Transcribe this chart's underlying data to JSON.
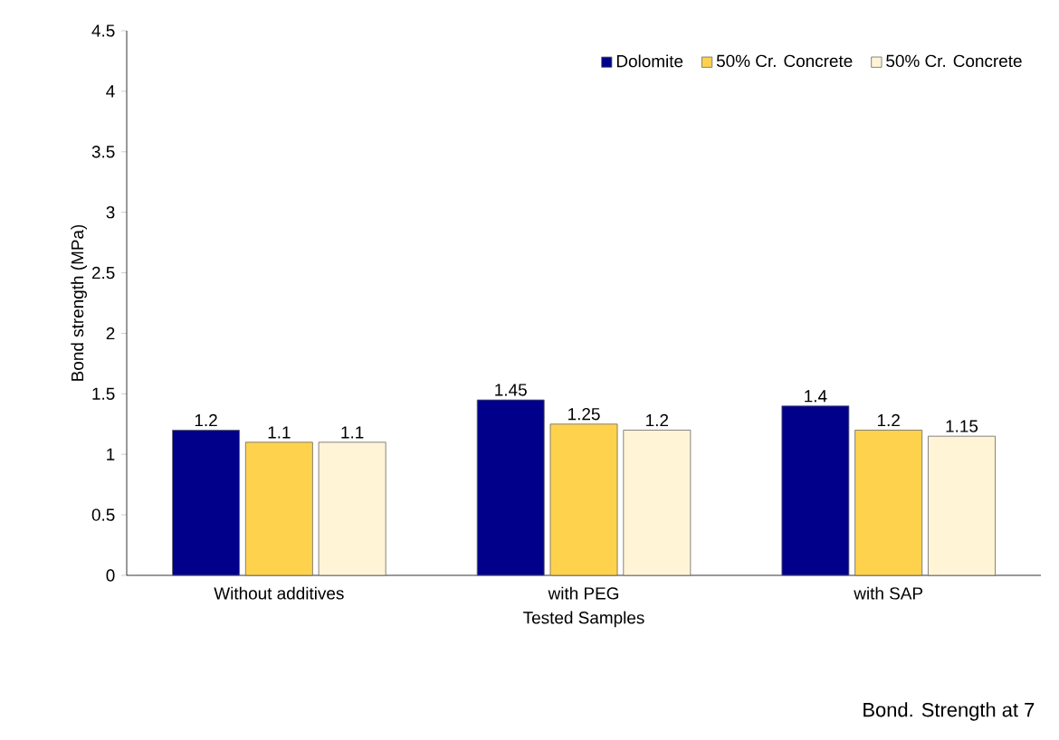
{
  "chart_data": {
    "type": "bar",
    "xlabel": "Tested Samples",
    "ylabel": "Bond strength (MPa)",
    "categories": [
      "Without additives",
      "with PEG",
      "with SAP"
    ],
    "series": [
      {
        "name": "Dolomite",
        "color": "#00008b",
        "values": [
          1.2,
          1.45,
          1.4
        ]
      },
      {
        "name": "50% Cr. Concrete",
        "color": "#ffd24d",
        "values": [
          1.1,
          1.25,
          1.2
        ]
      },
      {
        "name": "50% Cr. Concrete",
        "color": "#fff4d6",
        "values": [
          1.1,
          1.2,
          1.15
        ]
      }
    ],
    "ylim": [
      0,
      4.5
    ],
    "yticks": [
      0,
      0.5,
      1,
      1.5,
      2,
      2.5,
      3,
      3.5,
      4,
      4.5
    ],
    "grid": false,
    "legend": "top right",
    "data_labels": true,
    "annotations": [
      "Bond. Strength  at 7"
    ]
  }
}
